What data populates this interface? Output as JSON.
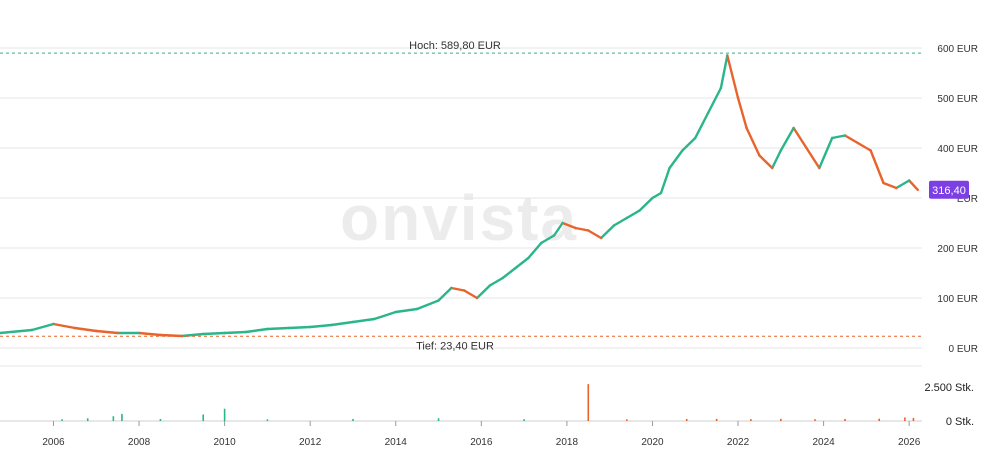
{
  "watermark": "onvista",
  "chart_data": {
    "type": "line",
    "ylim": [
      0,
      600
    ],
    "y_ticks": [
      {
        "value": 0,
        "label": "0 EUR"
      },
      {
        "value": 100,
        "label": "100 EUR"
      },
      {
        "value": 200,
        "label": "200 EUR"
      },
      {
        "value": 300,
        "label": "EUR"
      },
      {
        "value": 400,
        "label": "400 EUR"
      },
      {
        "value": 500,
        "label": "500 EUR"
      },
      {
        "value": 600,
        "label": "600 EUR"
      }
    ],
    "x_ticks": [
      "2006",
      "2008",
      "2010",
      "2012",
      "2014",
      "2016",
      "2018",
      "2020",
      "2022",
      "2024",
      "2026"
    ],
    "xlim": [
      2004.75,
      2026.3
    ],
    "high": {
      "value": 589.8,
      "label": "Hoch: 589,80 EUR"
    },
    "low": {
      "value": 23.4,
      "label": "Tief: 23,40 EUR"
    },
    "last_price": {
      "value": 316.4,
      "label": "316,40"
    },
    "colors": {
      "up": "#2bb58a",
      "down": "#e8642c",
      "high_line": "#2bb58a",
      "low_line": "#e8642c",
      "price_tag": "#7b3fe4"
    },
    "price": {
      "x": [
        2004.75,
        2005.5,
        2006.0,
        2006.5,
        2007.0,
        2007.5,
        2008.0,
        2008.5,
        2009.0,
        2009.5,
        2010.0,
        2010.5,
        2011.0,
        2011.5,
        2012.0,
        2012.5,
        2013.0,
        2013.5,
        2014.0,
        2014.5,
        2015.0,
        2015.3,
        2015.6,
        2015.9,
        2016.2,
        2016.5,
        2016.8,
        2017.1,
        2017.4,
        2017.7,
        2017.9,
        2018.2,
        2018.5,
        2018.8,
        2019.1,
        2019.4,
        2019.7,
        2020.0,
        2020.2,
        2020.4,
        2020.7,
        2021.0,
        2021.3,
        2021.6,
        2021.75,
        2022.0,
        2022.2,
        2022.5,
        2022.8,
        2023.0,
        2023.3,
        2023.6,
        2023.9,
        2024.2,
        2024.5,
        2024.8,
        2025.1,
        2025.4,
        2025.7,
        2026.0,
        2026.2
      ],
      "y": [
        30,
        36,
        48,
        40,
        34,
        30,
        30,
        26,
        24,
        28,
        30,
        32,
        38,
        40,
        42,
        46,
        52,
        58,
        72,
        78,
        95,
        120,
        115,
        100,
        125,
        140,
        160,
        180,
        210,
        225,
        250,
        240,
        235,
        220,
        245,
        260,
        275,
        300,
        310,
        360,
        395,
        420,
        470,
        520,
        585,
        500,
        440,
        385,
        360,
        395,
        440,
        400,
        360,
        420,
        425,
        410,
        395,
        330,
        320,
        335,
        316.4
      ]
    },
    "volume": {
      "labels": [
        {
          "value": 2500,
          "label": "2.500 Stk."
        },
        {
          "value": 0,
          "label": "0 Stk."
        }
      ],
      "ylim": [
        0,
        3000
      ],
      "bars": [
        {
          "x": 2006.2,
          "v": 120
        },
        {
          "x": 2006.8,
          "v": 200
        },
        {
          "x": 2007.4,
          "v": 350
        },
        {
          "x": 2007.6,
          "v": 520
        },
        {
          "x": 2008.5,
          "v": 150
        },
        {
          "x": 2009.5,
          "v": 480
        },
        {
          "x": 2010.0,
          "v": 900
        },
        {
          "x": 2011.0,
          "v": 120
        },
        {
          "x": 2013.0,
          "v": 150
        },
        {
          "x": 2015.0,
          "v": 200
        },
        {
          "x": 2017.0,
          "v": 130
        },
        {
          "x": 2018.5,
          "v": 2700
        },
        {
          "x": 2019.4,
          "v": 120
        },
        {
          "x": 2020.8,
          "v": 150
        },
        {
          "x": 2021.5,
          "v": 160
        },
        {
          "x": 2022.3,
          "v": 140
        },
        {
          "x": 2023.0,
          "v": 160
        },
        {
          "x": 2023.8,
          "v": 130
        },
        {
          "x": 2024.5,
          "v": 150
        },
        {
          "x": 2025.3,
          "v": 170
        },
        {
          "x": 2025.9,
          "v": 260
        },
        {
          "x": 2026.1,
          "v": 220
        }
      ]
    }
  }
}
